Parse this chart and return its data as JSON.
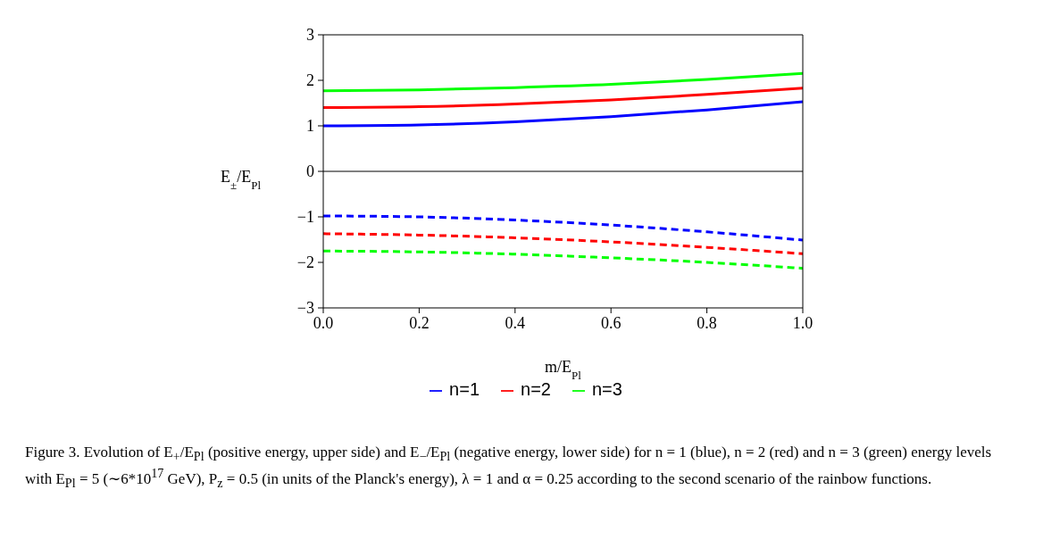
{
  "chart_data": {
    "type": "line",
    "xlabel": "m/E$_{Pl}$",
    "ylabel": "E$_{±}$/E$_{Pl}$",
    "x": [
      0,
      0.2,
      0.4,
      0.6,
      0.8,
      1.0
    ],
    "series": [
      {
        "name": "n=1",
        "color": "#0000ff",
        "values": [
          1.0,
          1.02,
          1.09,
          1.2,
          1.35,
          1.53
        ]
      },
      {
        "name": "n=2",
        "color": "#ff0000",
        "values": [
          1.4,
          1.42,
          1.48,
          1.57,
          1.69,
          1.83
        ]
      },
      {
        "name": "n=3",
        "color": "#00ff00",
        "values": [
          1.77,
          1.79,
          1.84,
          1.91,
          2.02,
          2.15
        ]
      },
      {
        "color": "#0000ff",
        "line_style": "dashed",
        "values": [
          -0.98,
          -1.0,
          -1.07,
          -1.18,
          -1.33,
          -1.51
        ]
      },
      {
        "color": "#ff0000",
        "line_style": "dashed",
        "values": [
          -1.37,
          -1.4,
          -1.46,
          -1.55,
          -1.67,
          -1.81
        ]
      },
      {
        "color": "#00ff00",
        "line_style": "dashed",
        "values": [
          -1.75,
          -1.77,
          -1.82,
          -1.9,
          -2.0,
          -2.13
        ]
      }
    ],
    "xlim": [
      0,
      1
    ],
    "xticks": [
      {
        "value": 0,
        "label": "0.0"
      },
      {
        "value": 0.2,
        "label": "0.2"
      },
      {
        "value": 0.4,
        "label": "0.4"
      },
      {
        "value": 0.6,
        "label": "0.6"
      },
      {
        "value": 0.8,
        "label": "0.8"
      },
      {
        "value": 1,
        "label": "1.0"
      }
    ],
    "ylim": [
      -3,
      3
    ],
    "yticks": [
      {
        "value": -3,
        "label": "−3"
      },
      {
        "value": -2,
        "label": "−2"
      },
      {
        "value": -1,
        "label": "−1"
      },
      0,
      1,
      2,
      3
    ],
    "ref_lines": [
      {
        "axis": "y",
        "value": 0,
        "color": "#000000"
      }
    ],
    "grid": false,
    "legend": "bottom",
    "marker": "none",
    "line_style": "solid",
    "annotations": [
      "Figure 3. Evolution of E$_{+}$/E$_{Pl}$ (positive energy, upper side) and E$_{−}$/E$_{Pl}$ (negative energy, lower side) for n = 1 (blue), n = 2 (red) and n = 3 (green) energy levels with E$_{Pl}$ = 5 (∼6*10$^{17}$ GeV), P$_{z}$ = 0.5 (in units of the Planck's energy), λ = 1 and α = 0.25 according to the second scenario of the rainbow functions."
    ]
  }
}
